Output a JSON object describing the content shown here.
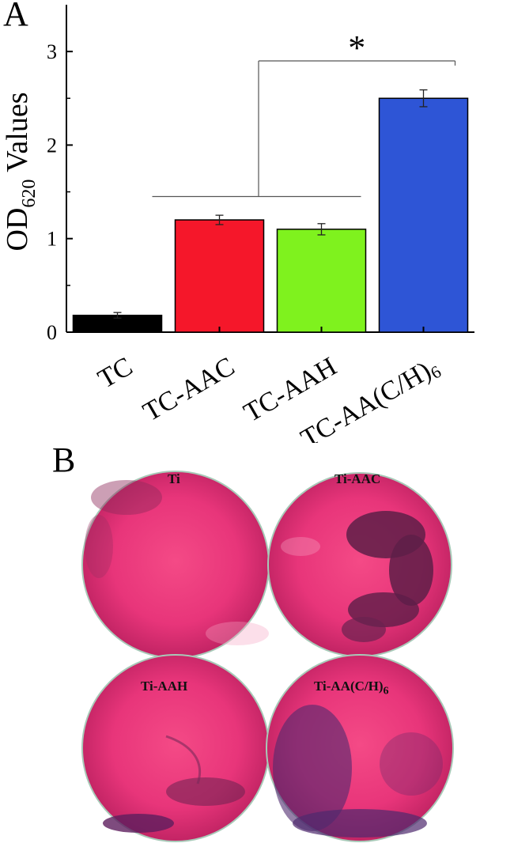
{
  "panel_a_letter": "A",
  "panel_b_letter": "B",
  "chart_data": {
    "type": "bar",
    "categories": [
      "TC",
      "TC-AAC",
      "TC-AAH",
      "TC-AA(C/H)6"
    ],
    "category_labels": [
      {
        "main": "TC",
        "sub": ""
      },
      {
        "main": "TC-AAC",
        "sub": ""
      },
      {
        "main": "TC-AAH",
        "sub": ""
      },
      {
        "main": "TC-AA(C/H)",
        "sub": "6"
      }
    ],
    "values": [
      0.18,
      1.2,
      1.1,
      2.5
    ],
    "errors": [
      0.03,
      0.05,
      0.06,
      0.09
    ],
    "colors": [
      "#000000",
      "#f5172a",
      "#7ff21e",
      "#2e55d6"
    ],
    "ylabel_main": "OD",
    "ylabel_sub": "620",
    "ylabel_rest": " Values",
    "ylim": [
      0,
      3.5
    ],
    "yticks": [
      0,
      1,
      2,
      3
    ],
    "significance": "*"
  },
  "dishes": [
    {
      "label_main": "Ti",
      "label_sub": ""
    },
    {
      "label_main": "Ti-AAC",
      "label_sub": ""
    },
    {
      "label_main": "Ti-AAH",
      "label_sub": ""
    },
    {
      "label_main": "Ti-AA(C/H)",
      "label_sub": "6"
    }
  ]
}
